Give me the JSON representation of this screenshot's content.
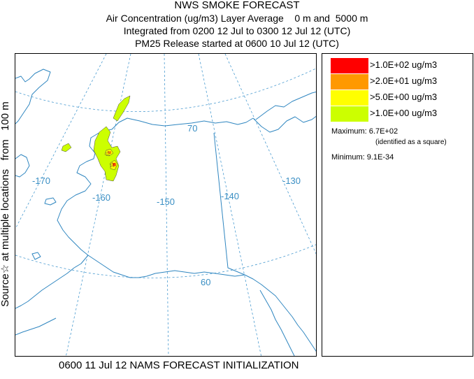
{
  "header": {
    "title": "NWS SMOKE FORECAST",
    "line2": "Air Concentration (ug/m3) Layer Average    0 m and  5000 m",
    "line3": "Integrated from 0200 12 Jul to 0300 12 Jul 12 (UTC)",
    "line4": "PM25 Release started at 0600 10 Jul 12 (UTC)"
  },
  "side_label": "Source☆ at multiple locations   from   100 m",
  "map": {
    "graticule_labels": {
      "lat_70": "70",
      "lat_60": "60",
      "lon_170": "-170",
      "lon_160": "-160",
      "lon_150": "-150",
      "lon_140": "-140",
      "lon_130": "-130"
    },
    "colors": {
      "graticule": "#3a8fc4",
      "coastline": "#2f86c0"
    }
  },
  "legend": {
    "items": [
      {
        "label": ">1.0E+02 ug/m3",
        "color": "#ff0000"
      },
      {
        "label": ">2.0E+01 ug/m3",
        "color": "#ff9900"
      },
      {
        "label": ">5.0E+00 ug/m3",
        "color": "#ffff00"
      },
      {
        "label": ">1.0E+00 ug/m3",
        "color": "#ccff00"
      }
    ],
    "maximum": "Maximum: 6.7E+02",
    "maximum_note": "(identified as a square)",
    "minimum": "Minimum: 9.1E-34"
  },
  "footer": "0600 11 Jul 12 NAMS FORECAST INITIALIZATION"
}
